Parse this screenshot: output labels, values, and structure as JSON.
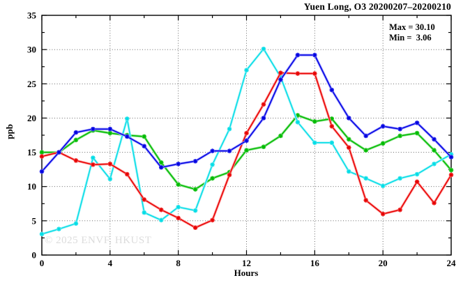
{
  "title": "Yuen Long, O3 20200207–20200210",
  "stats": {
    "max_label": "Max = 30.10",
    "min_label": "Min =  3.06"
  },
  "watermark": "© 2025 ENVF, HKUST",
  "chart_data": {
    "type": "line",
    "title": "Yuen Long, O3 20200207–20200210",
    "xlabel": "Hours",
    "ylabel": "ppb",
    "xlim": [
      0,
      24
    ],
    "ylim": [
      0,
      35
    ],
    "xticks": [
      0,
      4,
      8,
      12,
      16,
      20,
      24
    ],
    "x_minor_step": 2,
    "yticks": [
      0,
      5,
      10,
      15,
      20,
      25,
      30,
      35
    ],
    "y_minor_step": 2.5,
    "grid": true,
    "legend": "none",
    "max_value": 30.1,
    "min_value": 3.06,
    "x": [
      0,
      1,
      2,
      3,
      4,
      5,
      6,
      7,
      8,
      9,
      10,
      11,
      12,
      13,
      14,
      15,
      16,
      17,
      18,
      19,
      20,
      21,
      22,
      23,
      24
    ],
    "series": [
      {
        "name": "series-green",
        "color": "#00bb00",
        "halo": "#8ce28c",
        "values": [
          15.0,
          15.0,
          16.8,
          18.2,
          17.8,
          17.5,
          17.3,
          13.5,
          10.3,
          9.6,
          11.2,
          12.1,
          15.3,
          15.8,
          17.4,
          20.4,
          19.5,
          19.9,
          16.9,
          15.3,
          16.3,
          17.4,
          17.8,
          15.3,
          12.4
        ]
      },
      {
        "name": "series-cyan",
        "color": "#00dde6",
        "halo": "#aef3f7",
        "values": [
          3.06,
          3.8,
          4.6,
          14.2,
          11.1,
          19.9,
          6.2,
          5.1,
          7.0,
          6.5,
          13.2,
          18.4,
          27.0,
          30.1,
          26.0,
          19.4,
          16.4,
          16.4,
          12.2,
          11.2,
          10.1,
          11.2,
          11.8,
          13.3,
          14.7
        ]
      },
      {
        "name": "series-red",
        "color": "#e60000",
        "halo": "#ff9b9b",
        "values": [
          14.4,
          15.0,
          13.8,
          13.2,
          13.3,
          11.8,
          8.1,
          6.6,
          5.4,
          4.0,
          5.1,
          11.7,
          17.8,
          22.0,
          26.6,
          26.5,
          26.5,
          18.8,
          15.7,
          8.0,
          6.0,
          6.6,
          10.7,
          7.6,
          11.7
        ]
      },
      {
        "name": "series-blue",
        "color": "#0000e0",
        "halo": "#9a9aff",
        "values": [
          12.2,
          15.0,
          17.9,
          18.4,
          18.4,
          17.3,
          15.9,
          12.8,
          13.3,
          13.7,
          15.2,
          15.2,
          16.7,
          20.0,
          25.6,
          29.2,
          29.2,
          24.1,
          20.0,
          17.4,
          18.8,
          18.4,
          19.3,
          16.9,
          14.3
        ]
      }
    ]
  }
}
